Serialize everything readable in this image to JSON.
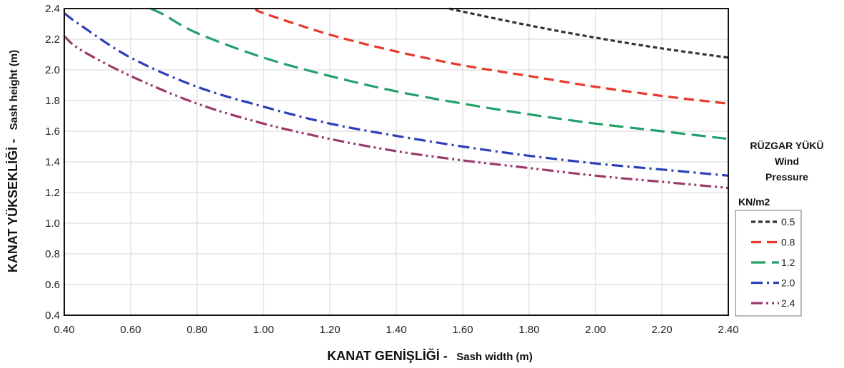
{
  "chart_data": {
    "type": "line",
    "xlabel_main": "KANAT GENİŞLİĞİ -",
    "xlabel_sub": "Sash width (m)",
    "ylabel_main": "KANAT YÜKSEKLİĞİ  -",
    "ylabel_sub": "Sash height (m)",
    "xlim": [
      0.4,
      2.4
    ],
    "ylim": [
      0.4,
      2.4
    ],
    "x_ticks": [
      "0.40",
      "0.60",
      "0.80",
      "1.00",
      "1.20",
      "1.40",
      "1.60",
      "1.80",
      "2.00",
      "2.20",
      "2.40"
    ],
    "y_ticks": [
      "0.4",
      "0.6",
      "0.8",
      "1.0",
      "1.2",
      "1.4",
      "1.6",
      "1.8",
      "2.0",
      "2.2",
      "2.4"
    ],
    "grid": true,
    "legend_position": "right",
    "legend_title": [
      "RÜZGAR YÜKÜ",
      "Wind",
      "Pressure"
    ],
    "legend_unit": "KN/m2",
    "series": [
      {
        "name": "0.5",
        "color": "#333333",
        "dash": "6 4",
        "x": [
          1.56,
          1.6,
          1.8,
          2.0,
          2.2,
          2.4
        ],
        "y": [
          2.4,
          2.38,
          2.29,
          2.21,
          2.14,
          2.08
        ]
      },
      {
        "name": "0.8",
        "color": "#e8382c",
        "dash": "14 8",
        "x": [
          0.98,
          1.0,
          1.2,
          1.4,
          1.6,
          1.8,
          2.0,
          2.2,
          2.4
        ],
        "y": [
          2.4,
          2.37,
          2.23,
          2.12,
          2.03,
          1.96,
          1.89,
          1.83,
          1.78
        ]
      },
      {
        "name": "1.2",
        "color": "#22a06a",
        "dash": "20 9",
        "x": [
          0.66,
          0.7,
          0.8,
          1.0,
          1.2,
          1.4,
          1.6,
          1.8,
          2.0,
          2.2,
          2.4
        ],
        "y": [
          2.4,
          2.36,
          2.24,
          2.08,
          1.96,
          1.86,
          1.78,
          1.71,
          1.65,
          1.6,
          1.55
        ]
      },
      {
        "name": "2.0",
        "color": "#2c3fb8",
        "dash": "16 6 3 6",
        "x": [
          0.4,
          0.45,
          0.6,
          0.8,
          1.0,
          1.2,
          1.4,
          1.6,
          1.8,
          2.0,
          2.2,
          2.4
        ],
        "y": [
          2.37,
          2.29,
          2.08,
          1.89,
          1.76,
          1.65,
          1.57,
          1.5,
          1.44,
          1.39,
          1.35,
          1.31
        ]
      },
      {
        "name": "2.4",
        "color": "#9a3a6a",
        "dash": "16 5 3 5 3 5",
        "x": [
          0.4,
          0.45,
          0.6,
          0.8,
          1.0,
          1.2,
          1.4,
          1.6,
          1.8,
          2.0,
          2.2,
          2.4
        ],
        "y": [
          2.22,
          2.13,
          1.96,
          1.78,
          1.65,
          1.55,
          1.47,
          1.41,
          1.36,
          1.31,
          1.27,
          1.23
        ]
      }
    ]
  }
}
